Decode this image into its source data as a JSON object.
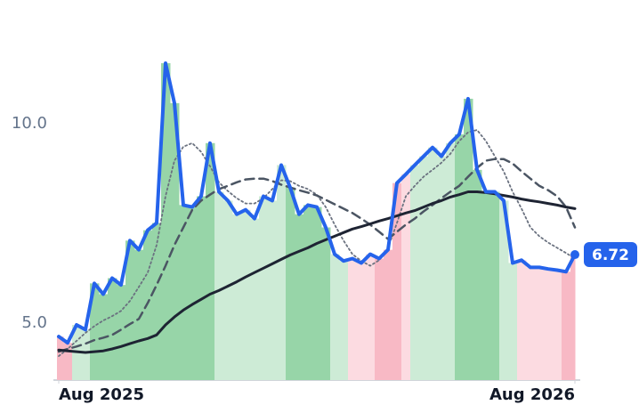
{
  "chart_data": {
    "type": "line",
    "xlim": [
      0,
      58
    ],
    "xticks": [
      {
        "value": 0,
        "label": "Aug 2025"
      },
      {
        "value": 58,
        "label": "Aug 2026"
      }
    ],
    "ylim": [
      3.58,
      12.2
    ],
    "yticks": [
      {
        "value": 5,
        "label": "5.0"
      },
      {
        "value": 10,
        "label": "10.0"
      }
    ],
    "grid": false,
    "bar_colors": [
      "#f8b9c5",
      "#f8b9c5",
      "#cdebd6",
      "#cdebd6",
      "#97d5a8",
      "#97d5a8",
      "#97d5a8",
      "#97d5a8",
      "#97d5a8",
      "#97d5a8",
      "#97d5a8",
      "#97d5a8",
      "#97d5a8",
      "#97d5a8",
      "#97d5a8",
      "#97d5a8",
      "#97d5a8",
      "#97d5a8",
      "#cdebd6",
      "#cdebd6",
      "#cdebd6",
      "#cdebd6",
      "#cdebd6",
      "#cdebd6",
      "#cdebd6",
      "#cdebd6",
      "#97d5a8",
      "#97d5a8",
      "#97d5a8",
      "#97d5a8",
      "#97d5a8",
      "#cdebd6",
      "#cdebd6",
      "#fcdbe1",
      "#fcdbe1",
      "#fcdbe1",
      "#f8b9c5",
      "#f8b9c5",
      "#f8b9c5",
      "#fcdbe1",
      "#cdebd6",
      "#cdebd6",
      "#cdebd6",
      "#cdebd6",
      "#cdebd6",
      "#97d5a8",
      "#97d5a8",
      "#97d5a8",
      "#97d5a8",
      "#97d5a8",
      "#cdebd6",
      "#cdebd6",
      "#fcdbe1",
      "#fcdbe1",
      "#fcdbe1",
      "#fcdbe1",
      "#fcdbe1",
      "#f8b9c5",
      "#f8b9c5"
    ],
    "series": [
      {
        "color": "#2563eb",
        "style": "solid",
        "width": 4,
        "bars": true,
        "last_label": true,
        "values": [
          4.67,
          4.51,
          4.96,
          4.84,
          6.0,
          5.73,
          6.13,
          5.96,
          7.07,
          6.84,
          7.33,
          7.51,
          11.51,
          10.51,
          7.96,
          7.91,
          8.18,
          9.51,
          8.29,
          8.07,
          7.73,
          7.84,
          7.62,
          8.18,
          8.07,
          8.96,
          8.4,
          7.73,
          7.96,
          7.91,
          7.4,
          6.73,
          6.56,
          6.62,
          6.51,
          6.73,
          6.62,
          6.84,
          8.51,
          8.73,
          8.96,
          9.18,
          9.4,
          9.18,
          9.51,
          9.73,
          10.62,
          8.84,
          8.29,
          8.29,
          8.07,
          6.51,
          6.58,
          6.4,
          6.4,
          6.36,
          6.33,
          6.29,
          6.72
        ]
      },
      {
        "color": "#1e2433",
        "style": "solid",
        "width": 3,
        "values": [
          4.33,
          4.31,
          4.29,
          4.27,
          4.29,
          4.31,
          4.36,
          4.42,
          4.49,
          4.56,
          4.62,
          4.71,
          4.96,
          5.16,
          5.33,
          5.47,
          5.6,
          5.73,
          5.82,
          5.93,
          6.04,
          6.16,
          6.27,
          6.38,
          6.49,
          6.6,
          6.71,
          6.8,
          6.89,
          7.0,
          7.09,
          7.18,
          7.27,
          7.36,
          7.42,
          7.49,
          7.56,
          7.62,
          7.69,
          7.76,
          7.82,
          7.91,
          8.0,
          8.07,
          8.16,
          8.22,
          8.29,
          8.29,
          8.27,
          8.24,
          8.2,
          8.16,
          8.11,
          8.07,
          8.04,
          8.0,
          7.96,
          7.91,
          7.87
        ]
      },
      {
        "color": "#4b5563",
        "style": "dashed",
        "width": 2.5,
        "values": [
          4.29,
          4.36,
          4.42,
          4.49,
          4.58,
          4.64,
          4.71,
          4.84,
          4.98,
          5.11,
          5.51,
          5.96,
          6.44,
          6.96,
          7.4,
          7.84,
          8.07,
          8.22,
          8.36,
          8.44,
          8.53,
          8.6,
          8.62,
          8.62,
          8.56,
          8.47,
          8.4,
          8.33,
          8.27,
          8.2,
          8.09,
          7.98,
          7.87,
          7.76,
          7.62,
          7.47,
          7.29,
          7.11,
          7.29,
          7.47,
          7.62,
          7.8,
          7.96,
          8.13,
          8.29,
          8.44,
          8.67,
          8.89,
          9.07,
          9.11,
          9.11,
          9.0,
          8.8,
          8.62,
          8.44,
          8.33,
          8.18,
          7.91,
          7.4
        ]
      },
      {
        "color": "#6b7280",
        "style": "dotted",
        "width": 1.8,
        "values": [
          4.18,
          4.36,
          4.56,
          4.76,
          4.93,
          5.07,
          5.18,
          5.31,
          5.56,
          5.91,
          6.27,
          6.96,
          8.18,
          9.07,
          9.42,
          9.51,
          9.29,
          8.93,
          8.53,
          8.31,
          8.13,
          8.0,
          8.0,
          8.13,
          8.36,
          8.58,
          8.56,
          8.44,
          8.36,
          8.22,
          7.91,
          7.47,
          7.07,
          6.73,
          6.56,
          6.44,
          6.58,
          6.89,
          7.51,
          8.18,
          8.44,
          8.67,
          8.84,
          9.02,
          9.24,
          9.56,
          9.78,
          9.84,
          9.56,
          9.18,
          8.8,
          8.29,
          7.87,
          7.4,
          7.18,
          7.02,
          6.89,
          6.76,
          6.62
        ]
      }
    ]
  }
}
